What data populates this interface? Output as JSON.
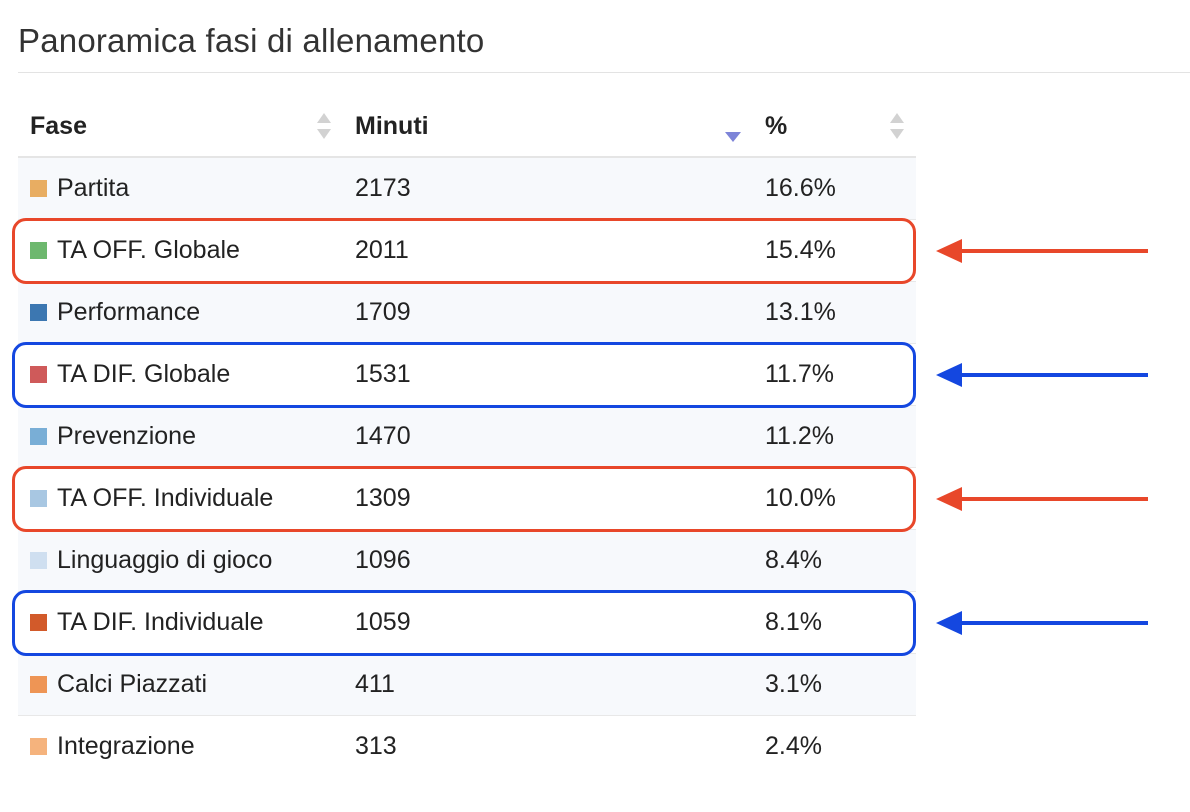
{
  "page_title": "Panoramica fasi di allenamento",
  "table": {
    "columns": [
      {
        "label": "Fase",
        "sort": "both"
      },
      {
        "label": "Minuti",
        "sort": "desc"
      },
      {
        "label": "%",
        "sort": "both"
      }
    ],
    "rows": [
      {
        "fase": "Partita",
        "minuti": "2173",
        "pct": "16.6%",
        "color": "#e8ad62"
      },
      {
        "fase": "TA OFF. Globale",
        "minuti": "2011",
        "pct": "15.4%",
        "color": "#6db86e"
      },
      {
        "fase": "Performance",
        "minuti": "1709",
        "pct": "13.1%",
        "color": "#3c77b1"
      },
      {
        "fase": "TA DIF. Globale",
        "minuti": "1531",
        "pct": "11.7%",
        "color": "#cf5a5a"
      },
      {
        "fase": "Prevenzione",
        "minuti": "1470",
        "pct": "11.2%",
        "color": "#79aed6"
      },
      {
        "fase": "TA OFF. Individuale",
        "minuti": "1309",
        "pct": "10.0%",
        "color": "#a8c7e2"
      },
      {
        "fase": "Linguaggio di gioco",
        "minuti": "1096",
        "pct": "8.4%",
        "color": "#cfdff0"
      },
      {
        "fase": "TA DIF. Individuale",
        "minuti": "1059",
        "pct": "8.1%",
        "color": "#d25a2a"
      },
      {
        "fase": "Calci Piazzati",
        "minuti": "411",
        "pct": "3.1%",
        "color": "#ee9555"
      },
      {
        "fase": "Integrazione",
        "minuti": "313",
        "pct": "2.4%",
        "color": "#f5b37d"
      }
    ]
  },
  "annotations": [
    {
      "row": 1,
      "color": "#e8472a"
    },
    {
      "row": 3,
      "color": "#1447e0"
    },
    {
      "row": 5,
      "color": "#e8472a"
    },
    {
      "row": 7,
      "color": "#1447e0"
    }
  ]
}
